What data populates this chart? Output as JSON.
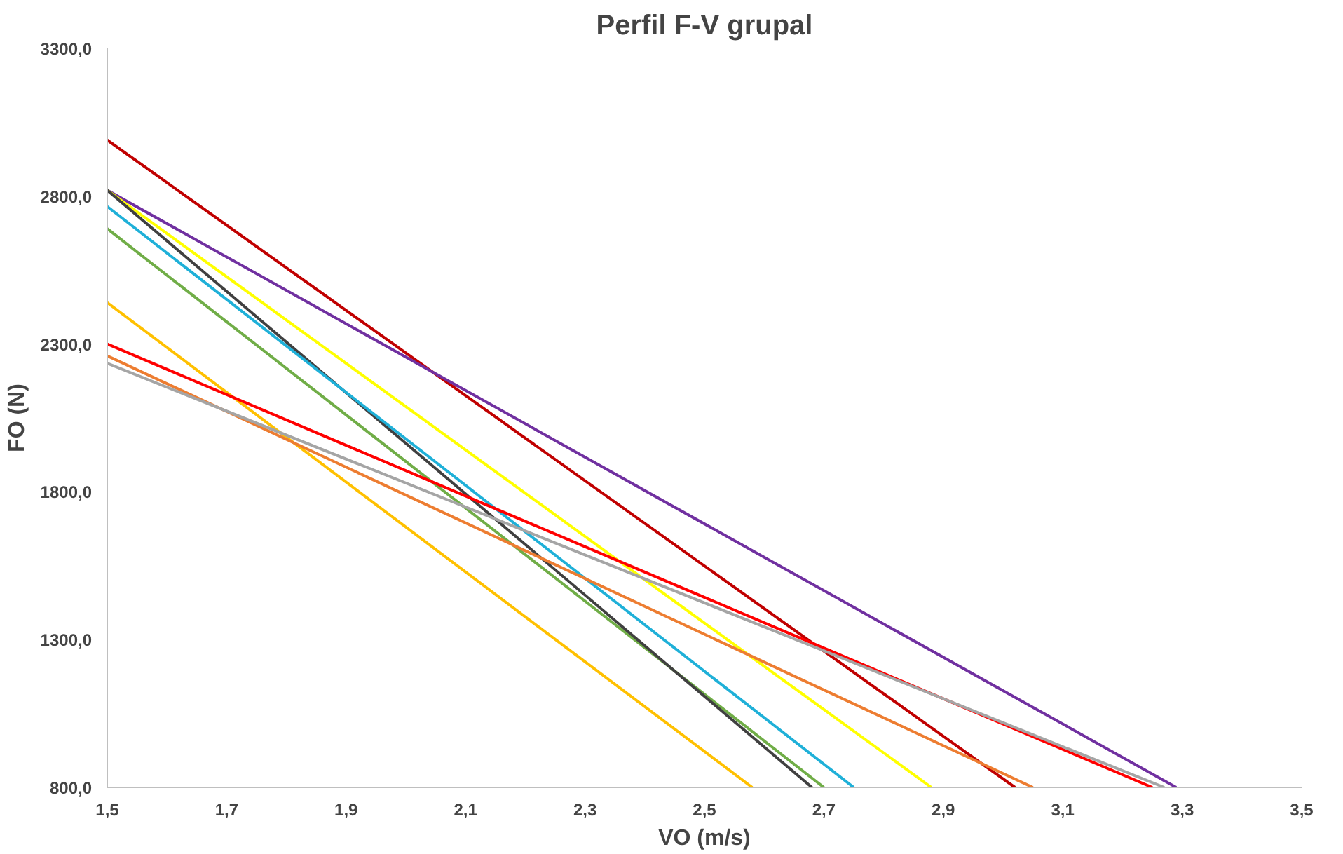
{
  "chart_data": {
    "type": "line",
    "title": "Perfil F-V grupal",
    "xlabel": "VO (m/s)",
    "ylabel": "FO (N)",
    "xlim": [
      1.5,
      3.5
    ],
    "ylim": [
      800,
      3300
    ],
    "xticks": [
      {
        "value": 1.5,
        "label": "1,5"
      },
      {
        "value": 1.7,
        "label": "1,7"
      },
      {
        "value": 1.9,
        "label": "1,9"
      },
      {
        "value": 2.1,
        "label": "2,1"
      },
      {
        "value": 2.3,
        "label": "2,3"
      },
      {
        "value": 2.5,
        "label": "2,5"
      },
      {
        "value": 2.7,
        "label": "2,7"
      },
      {
        "value": 2.9,
        "label": "2,9"
      },
      {
        "value": 3.1,
        "label": "3,1"
      },
      {
        "value": 3.3,
        "label": "3,3"
      },
      {
        "value": 3.5,
        "label": "3,5"
      }
    ],
    "yticks": [
      {
        "value": 800,
        "label": "800,0"
      },
      {
        "value": 1300,
        "label": "1300,0"
      },
      {
        "value": 1800,
        "label": "1800,0"
      },
      {
        "value": 2300,
        "label": "2300,0"
      },
      {
        "value": 2800,
        "label": "2800,0"
      },
      {
        "value": 3300,
        "label": "3300,0"
      }
    ],
    "grid": false,
    "marker": "none",
    "line_style": "solid",
    "series": [
      {
        "color": "#c00000",
        "x": [
          1.5,
          3.02
        ],
        "values": [
          2990,
          800
        ]
      },
      {
        "color": "#7030a0",
        "x": [
          1.5,
          3.29
        ],
        "values": [
          2820,
          800
        ]
      },
      {
        "color": "#ffff00",
        "x": [
          1.5,
          2.88
        ],
        "values": [
          2820,
          800
        ]
      },
      {
        "color": "#70ad47",
        "x": [
          1.5,
          2.7
        ],
        "values": [
          2690,
          800
        ]
      },
      {
        "color": "#404040",
        "x": [
          1.5,
          2.68
        ],
        "values": [
          2820,
          800
        ]
      },
      {
        "color": "#1fb0d8",
        "x": [
          1.5,
          2.75
        ],
        "values": [
          2765,
          800
        ]
      },
      {
        "color": "#ffc000",
        "x": [
          1.5,
          2.58
        ],
        "values": [
          2440,
          800
        ]
      },
      {
        "color": "#ff0000",
        "x": [
          1.5,
          3.25
        ],
        "values": [
          2300,
          800
        ]
      },
      {
        "color": "#ed7d31",
        "x": [
          1.5,
          3.05
        ],
        "values": [
          2260,
          800
        ]
      },
      {
        "color": "#a5a5a5",
        "x": [
          1.5,
          3.27
        ],
        "values": [
          2235,
          800
        ]
      }
    ]
  }
}
